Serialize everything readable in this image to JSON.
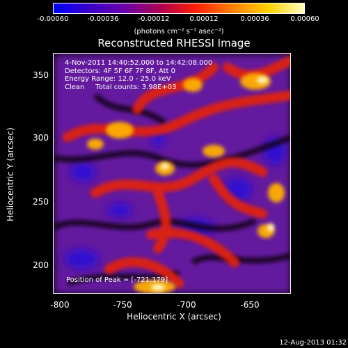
{
  "colorbar": {
    "ticks": [
      "-0.00060",
      "-0.00036",
      "-0.00012",
      "0.00012",
      "0.00036",
      "0.00060"
    ],
    "units": "(photons cm⁻² s⁻¹ asec⁻²)",
    "colors": [
      "#0000ff",
      "#3a00c8",
      "#6a00a8",
      "#b00050",
      "#ff2000",
      "#ff8000",
      "#ffd000",
      "#ffffc0"
    ]
  },
  "title": "Reconstructed RHESSI Image",
  "overlay": {
    "line1": "4-Nov-2011 14:40:52.000 to 14:42:08.000",
    "line2": "Detectors: 4F 5F 6F 7F 8F, Att 0",
    "line3": "Energy Range: 12.0 - 25.0 keV",
    "line4": "Clean     Total counts: 3.98E+03",
    "peak": "Position of Peak = [-721,179]"
  },
  "axes": {
    "xlabel": "Heliocentric X (arcsec)",
    "ylabel": "Heliocentric Y (arcsec)",
    "xticks": [
      "-800",
      "-750",
      "-700",
      "-650"
    ],
    "yticks": [
      "350",
      "300",
      "250",
      "200"
    ]
  },
  "timestamp": "12-Aug-2013 01:32"
}
